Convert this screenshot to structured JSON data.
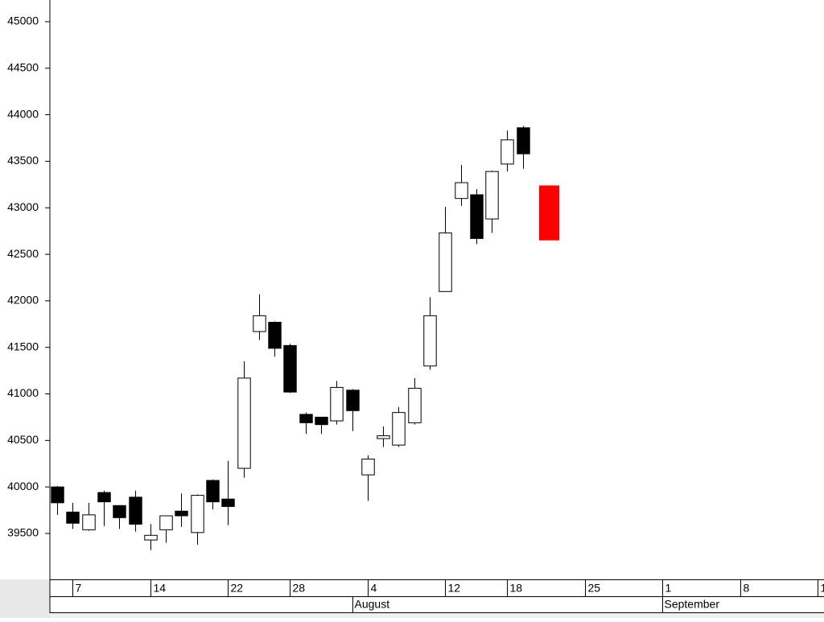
{
  "chart_data": {
    "type": "candlestick",
    "x": [
      0,
      1,
      2,
      3,
      4,
      5,
      6,
      7,
      8,
      9,
      10,
      11,
      12,
      13,
      14,
      15,
      16,
      17,
      18,
      19,
      20,
      21,
      22,
      23,
      24,
      25,
      26,
      27,
      28,
      29,
      30
    ],
    "open": [
      40000,
      39730,
      39540,
      39940,
      39800,
      39890,
      39430,
      39540,
      39740,
      39510,
      40070,
      39870,
      40200,
      41670,
      41770,
      41520,
      40780,
      40750,
      40710,
      41040,
      40130,
      40520,
      40450,
      40690,
      41300,
      42100,
      43100,
      43140,
      42880,
      43470,
      43860
    ],
    "high": [
      40010,
      39830,
      39830,
      39960,
      39800,
      39960,
      39600,
      39690,
      39930,
      39920,
      40080,
      40280,
      41350,
      42070,
      41780,
      41540,
      40800,
      40750,
      41140,
      41050,
      40340,
      40650,
      40860,
      41170,
      42040,
      43010,
      43460,
      43200,
      43400,
      43830,
      43880
    ],
    "low": [
      39700,
      39550,
      39530,
      39580,
      39550,
      39520,
      39320,
      39400,
      39570,
      39380,
      39760,
      39590,
      40100,
      41580,
      41400,
      41010,
      40570,
      40570,
      40670,
      40600,
      39850,
      40430,
      40430,
      40670,
      41260,
      42100,
      43020,
      42610,
      42730,
      43390,
      43420
    ],
    "close": [
      39830,
      39610,
      39700,
      39840,
      39670,
      39600,
      39480,
      39690,
      39690,
      39910,
      39840,
      39790,
      41170,
      41840,
      41490,
      41020,
      40690,
      40670,
      41070,
      40820,
      40300,
      40550,
      40800,
      41060,
      41840,
      42730,
      43270,
      42670,
      43390,
      43730,
      43580
    ],
    "up_color": "#ffffff",
    "down_color": "#000000",
    "highlight": {
      "x": 31.7,
      "low": 42650,
      "high": 43240,
      "color": "#ff0000"
    },
    "xlim": [
      -0.47,
      49.2
    ],
    "xticks": [
      {
        "value": 1,
        "label": "7"
      },
      {
        "value": 6,
        "label": "14"
      },
      {
        "value": 11,
        "label": "22"
      },
      {
        "value": 15,
        "label": "28"
      },
      {
        "value": 20,
        "label": "4"
      },
      {
        "value": 25,
        "label": "12"
      },
      {
        "value": 29,
        "label": "18"
      },
      {
        "value": 34,
        "label": "25"
      },
      {
        "value": 39,
        "label": "1"
      },
      {
        "value": 44,
        "label": "8"
      },
      {
        "value": 49,
        "label": "1"
      }
    ],
    "month_ticks": [
      {
        "value": 19,
        "label": "August"
      },
      {
        "value": 39,
        "label": "September"
      }
    ],
    "ylim": [
      39007,
      45233
    ],
    "yticks": [
      39500,
      40000,
      40500,
      41000,
      41500,
      42000,
      42500,
      43000,
      43500,
      44000,
      44500,
      45000
    ]
  }
}
